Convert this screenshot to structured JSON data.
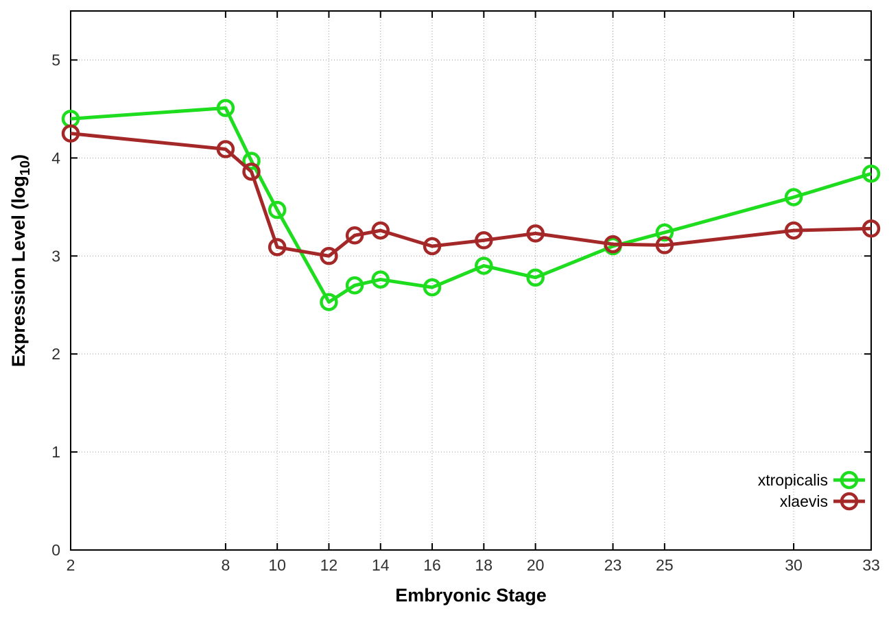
{
  "chart_data": {
    "type": "line",
    "title": "",
    "xlabel": "Embryonic Stage",
    "ylabel": {
      "text": "Expression Level (log10)",
      "main": "Expression Level (log",
      "sub": "10",
      "suffix": ")"
    },
    "x": [
      2,
      8,
      9,
      10,
      12,
      13,
      14,
      16,
      18,
      20,
      23,
      25,
      30,
      33
    ],
    "series": [
      {
        "name": "xtropicalis",
        "color": "#1edc1e",
        "marker": "open-circle",
        "values": [
          4.4,
          4.51,
          3.97,
          3.47,
          2.53,
          2.7,
          2.76,
          2.68,
          2.9,
          2.78,
          3.1,
          3.24,
          3.6,
          3.84
        ]
      },
      {
        "name": "xlaevis",
        "color": "#a52828",
        "marker": "open-circle",
        "values": [
          4.25,
          4.09,
          3.86,
          3.09,
          3.0,
          3.21,
          3.26,
          3.1,
          3.16,
          3.23,
          3.12,
          3.11,
          3.26,
          3.28
        ]
      }
    ],
    "xticks": [
      2,
      8,
      10,
      12,
      14,
      16,
      18,
      20,
      23,
      25,
      30,
      33
    ],
    "yticks": [
      0,
      1,
      2,
      3,
      4,
      5
    ],
    "xlim": [
      2,
      33
    ],
    "ylim": [
      0,
      5.5
    ],
    "grid": true,
    "grid_style": "dotted",
    "legend_position": "inside-right-lower",
    "colors": {
      "background": "#ffffff",
      "border": "#000000",
      "grid": "#9a9a9a",
      "tick_label": "#303030"
    }
  }
}
